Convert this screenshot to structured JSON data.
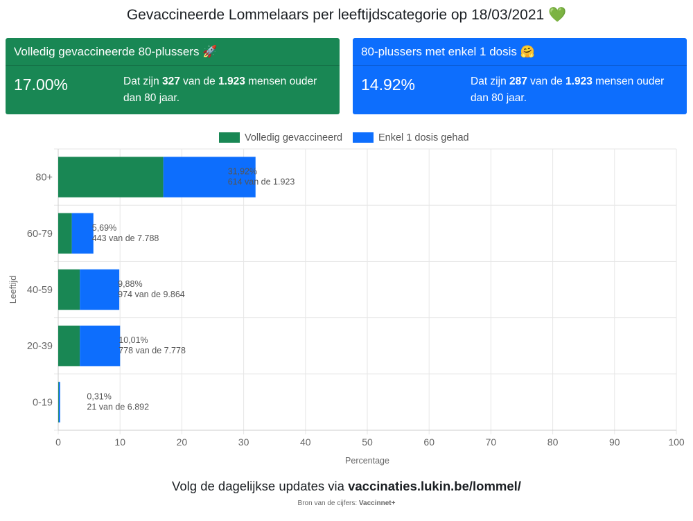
{
  "title": "Gevaccineerde Lommelaars per leeftijdscategorie op 18/03/2021 💚",
  "cards": [
    {
      "header": "Volledig gevaccineerde 80-plussers 🚀",
      "percentage": "17.00%",
      "text_prefix": "Dat zijn ",
      "count": "327",
      "text_middle": " van de ",
      "total": "1.923",
      "text_suffix": " mensen ouder dan 80 jaar.",
      "color": "#198754"
    },
    {
      "header": "80-plussers met enkel 1 dosis 🤗",
      "percentage": "14.92%",
      "text_prefix": "Dat zijn ",
      "count": "287",
      "text_middle": " van de ",
      "total": "1.923",
      "text_suffix": " mensen ouder dan 80 jaar.",
      "color": "#0d6efd"
    }
  ],
  "chart_data": {
    "type": "bar",
    "orientation": "horizontal",
    "stacked": true,
    "categories": [
      "80+",
      "60-79",
      "40-59",
      "20-39",
      "0-19"
    ],
    "series": [
      {
        "name": "Volledig gevaccineerd",
        "color": "#198754",
        "values": [
          17.0,
          2.2,
          3.5,
          3.5,
          0.1
        ]
      },
      {
        "name": "Enkel 1 dosis gehad",
        "color": "#0d6efd",
        "values": [
          14.92,
          3.49,
          6.38,
          6.51,
          0.21
        ]
      }
    ],
    "annotations": [
      {
        "pct": "31,92%",
        "count": "614 van de 1.923"
      },
      {
        "pct": "5,69%",
        "count": "443 van de 7.788"
      },
      {
        "pct": "9,88%",
        "count": "974 van de 9.864"
      },
      {
        "pct": "10,01%",
        "count": "778 van de 7.778"
      },
      {
        "pct": "0,31%",
        "count": "21 van de 6.892"
      }
    ],
    "xlabel": "Percentage",
    "ylabel": "Leeftijd",
    "xlim": [
      0,
      100
    ],
    "xticks": [
      0,
      10,
      20,
      30,
      40,
      50,
      60,
      70,
      80,
      90,
      100
    ],
    "grid": true,
    "legend_position": "top"
  },
  "footer": {
    "prefix": "Volg de dagelijkse updates via ",
    "link": "vaccinaties.lukin.be/lommel/",
    "source_prefix": "Bron van de cijfers: ",
    "source": "Vaccinnet+"
  }
}
